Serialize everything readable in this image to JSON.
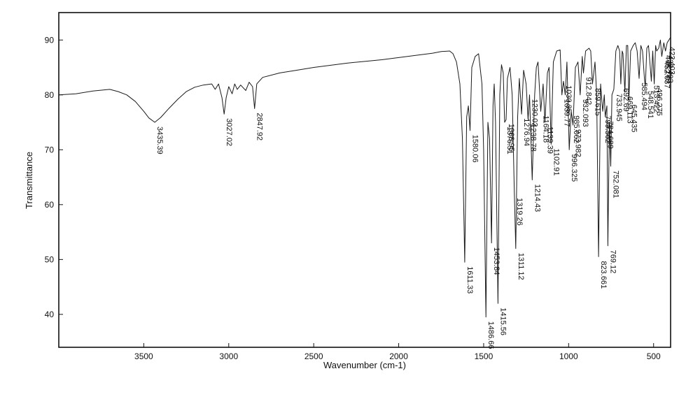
{
  "chart_data": {
    "type": "line",
    "xlabel": "Wavenumber (cm-1)",
    "ylabel": "Transmittance",
    "xlim": [
      4000,
      400
    ],
    "ylim": [
      34,
      95
    ],
    "x_reversed": true,
    "grid": false,
    "x_ticks": [
      3500,
      3000,
      2500,
      2000,
      1500,
      1000,
      500
    ],
    "y_ticks": [
      40,
      50,
      60,
      70,
      80,
      90
    ],
    "series": [
      {
        "color": "#1a1a1a",
        "points": [
          [
            4000,
            80.0
          ],
          [
            3900,
            80.2
          ],
          [
            3800,
            80.7
          ],
          [
            3700,
            81.0
          ],
          [
            3650,
            80.6
          ],
          [
            3600,
            80.0
          ],
          [
            3550,
            78.8
          ],
          [
            3500,
            77.0
          ],
          [
            3470,
            75.8
          ],
          [
            3435.39,
            75.0
          ],
          [
            3400,
            75.9
          ],
          [
            3350,
            77.6
          ],
          [
            3300,
            79.2
          ],
          [
            3250,
            80.6
          ],
          [
            3200,
            81.4
          ],
          [
            3150,
            81.8
          ],
          [
            3100,
            82.0
          ],
          [
            3080,
            81.0
          ],
          [
            3060,
            82.0
          ],
          [
            3040,
            79.5
          ],
          [
            3027.02,
            76.5
          ],
          [
            3015,
            79.5
          ],
          [
            3000,
            81.5
          ],
          [
            2980,
            80.2
          ],
          [
            2965,
            82.0
          ],
          [
            2950,
            81.0
          ],
          [
            2930,
            81.8
          ],
          [
            2900,
            80.8
          ],
          [
            2880,
            82.3
          ],
          [
            2860,
            81.5
          ],
          [
            2847.92,
            77.5
          ],
          [
            2835,
            82.0
          ],
          [
            2800,
            83.2
          ],
          [
            2700,
            84.0
          ],
          [
            2600,
            84.5
          ],
          [
            2500,
            85.0
          ],
          [
            2400,
            85.4
          ],
          [
            2300,
            85.8
          ],
          [
            2200,
            86.1
          ],
          [
            2100,
            86.4
          ],
          [
            2000,
            86.8
          ],
          [
            1900,
            87.2
          ],
          [
            1800,
            87.6
          ],
          [
            1750,
            87.9
          ],
          [
            1700,
            88.0
          ],
          [
            1680,
            87.5
          ],
          [
            1660,
            86.0
          ],
          [
            1640,
            82.0
          ],
          [
            1625,
            72.0
          ],
          [
            1611.33,
            49.5
          ],
          [
            1600,
            76.0
          ],
          [
            1590,
            78.0
          ],
          [
            1580.06,
            73.5
          ],
          [
            1570,
            85.0
          ],
          [
            1550,
            87.0
          ],
          [
            1530,
            87.5
          ],
          [
            1510,
            82.0
          ],
          [
            1500,
            70.0
          ],
          [
            1486.66,
            39.5
          ],
          [
            1475,
            75.0
          ],
          [
            1465,
            72.0
          ],
          [
            1453.84,
            53.0
          ],
          [
            1445,
            78.0
          ],
          [
            1438,
            82.0
          ],
          [
            1430,
            75.0
          ],
          [
            1415.56,
            42.0
          ],
          [
            1405,
            80.0
          ],
          [
            1395,
            85.5
          ],
          [
            1385,
            84.0
          ],
          [
            1376.51,
            75.0
          ],
          [
            1368,
            75.5
          ],
          [
            1360,
            83.0
          ],
          [
            1345,
            85.0
          ],
          [
            1332,
            80.0
          ],
          [
            1319.26,
            62.0
          ],
          [
            1311.12,
            52.0
          ],
          [
            1300,
            76.0
          ],
          [
            1290,
            83.0
          ],
          [
            1276.94,
            76.5
          ],
          [
            1265,
            84.5
          ],
          [
            1250,
            82.0
          ],
          [
            1238.78,
            75.5
          ],
          [
            1230,
            80.0
          ],
          [
            1214.43,
            64.5
          ],
          [
            1200,
            80.0
          ],
          [
            1190,
            85.0
          ],
          [
            1180,
            86.0
          ],
          [
            1164.18,
            77.0
          ],
          [
            1150,
            82.0
          ],
          [
            1139.39,
            75.0
          ],
          [
            1125,
            84.0
          ],
          [
            1115,
            85.0
          ],
          [
            1102.91,
            71.0
          ],
          [
            1090,
            86.0
          ],
          [
            1070,
            88.0
          ],
          [
            1050,
            88.2
          ],
          [
            1039.77,
            80.0
          ],
          [
            1030,
            82.5
          ],
          [
            1020,
            80.0
          ],
          [
            1010,
            86.0
          ],
          [
            996.325,
            70.0
          ],
          [
            985,
            77.0
          ],
          [
            973.982,
            74.5
          ],
          [
            960,
            85.0
          ],
          [
            945,
            86.0
          ],
          [
            932.093,
            80.0
          ],
          [
            920,
            87.0
          ],
          [
            912.842,
            84.0
          ],
          [
            900,
            88.0
          ],
          [
            880,
            88.5
          ],
          [
            870,
            88.0
          ],
          [
            859.615,
            82.0
          ],
          [
            845,
            86.0
          ],
          [
            835,
            80.0
          ],
          [
            823.661,
            50.5
          ],
          [
            812,
            82.0
          ],
          [
            799.562,
            77.0
          ],
          [
            790,
            80.0
          ],
          [
            784.689,
            76.0
          ],
          [
            775,
            78.0
          ],
          [
            769.12,
            52.5
          ],
          [
            760,
            75.0
          ],
          [
            752.081,
            67.0
          ],
          [
            745,
            80.0
          ],
          [
            733.945,
            81.0
          ],
          [
            722,
            88.0
          ],
          [
            710,
            89.0
          ],
          [
            700,
            88.0
          ],
          [
            692.69,
            82.0
          ],
          [
            685,
            88.0
          ],
          [
            680,
            87.5
          ],
          [
            669.113,
            80.5
          ],
          [
            660,
            89.0
          ],
          [
            652,
            89.0
          ],
          [
            645.435,
            79.0
          ],
          [
            635,
            88.0
          ],
          [
            620,
            89.0
          ],
          [
            608,
            89.5
          ],
          [
            597,
            88.0
          ],
          [
            585.494,
            83.0
          ],
          [
            575,
            89.0
          ],
          [
            565,
            88.0
          ],
          [
            554,
            83.0
          ],
          [
            548.541,
            81.5
          ],
          [
            540,
            88.5
          ],
          [
            530,
            89.0
          ],
          [
            522,
            86.0
          ],
          [
            513.422,
            82.5
          ],
          [
            505,
            88.0
          ],
          [
            496.275,
            82.0
          ],
          [
            488,
            89.0
          ],
          [
            482,
            88.0
          ],
          [
            470,
            88.5
          ],
          [
            460,
            90.0
          ],
          [
            452,
            87.0
          ],
          [
            440,
            89.5
          ],
          [
            430,
            88.0
          ],
          [
            420,
            89.5
          ],
          [
            410,
            90.0
          ],
          [
            400,
            90.5
          ]
        ]
      }
    ],
    "peak_labels": [
      {
        "x": 3435.39,
        "y": 75.0,
        "text": "3435.39"
      },
      {
        "x": 3027.02,
        "y": 76.5,
        "text": "3027.02"
      },
      {
        "x": 2847.92,
        "y": 77.5,
        "text": "2847.92"
      },
      {
        "x": 1611.33,
        "y": 49.5,
        "text": "1611.33"
      },
      {
        "x": 1580.06,
        "y": 73.5,
        "text": "1580.06"
      },
      {
        "x": 1486.66,
        "y": 39.5,
        "text": "1486.66"
      },
      {
        "x": 1453.84,
        "y": 53.0,
        "text": "1453.84"
      },
      {
        "x": 1415.56,
        "y": 42.0,
        "text": "1415.56"
      },
      {
        "x": 1376.51,
        "y": 75.0,
        "text": "1376.51"
      },
      {
        "x": 1368.95,
        "y": 75.5,
        "text": "1368.95"
      },
      {
        "x": 1319.26,
        "y": 62.0,
        "text": "1319.26"
      },
      {
        "x": 1311.12,
        "y": 52.0,
        "text": "1311.12"
      },
      {
        "x": 1276.94,
        "y": 76.5,
        "text": "1276.94"
      },
      {
        "x": 1238.78,
        "y": 75.5,
        "text": "1238.78"
      },
      {
        "x": 1230.02,
        "y": 80.0,
        "text": "1230.02"
      },
      {
        "x": 1214.43,
        "y": 64.5,
        "text": "1214.43"
      },
      {
        "x": 1164.18,
        "y": 77.0,
        "text": "1164.18"
      },
      {
        "x": 1139.39,
        "y": 75.0,
        "text": "1139.39"
      },
      {
        "x": 1102.91,
        "y": 71.0,
        "text": "1102.91"
      },
      {
        "x": 1039.77,
        "y": 80.0,
        "text": "1039.77"
      },
      {
        "x": 1030.35,
        "y": 82.5,
        "text": "1030.35"
      },
      {
        "x": 996.325,
        "y": 70.0,
        "text": "996.325"
      },
      {
        "x": 973.982,
        "y": 74.5,
        "text": "973.982"
      },
      {
        "x": 985.062,
        "y": 77.0,
        "text": "985.062"
      },
      {
        "x": 932.093,
        "y": 80.0,
        "text": "932.093"
      },
      {
        "x": 912.842,
        "y": 84.0,
        "text": "912.842"
      },
      {
        "x": 859.615,
        "y": 82.0,
        "text": "859.615"
      },
      {
        "x": 823.661,
        "y": 50.5,
        "text": "823.661"
      },
      {
        "x": 799.562,
        "y": 77.0,
        "text": "799.562"
      },
      {
        "x": 784.689,
        "y": 76.0,
        "text": "784.689"
      },
      {
        "x": 769.12,
        "y": 52.5,
        "text": "769.12"
      },
      {
        "x": 752.081,
        "y": 67.0,
        "text": "752.081"
      },
      {
        "x": 733.945,
        "y": 81.0,
        "text": "733.945"
      },
      {
        "x": 692.69,
        "y": 82.0,
        "text": "692.69"
      },
      {
        "x": 669.113,
        "y": 80.5,
        "text": "669.113"
      },
      {
        "x": 645.435,
        "y": 79.0,
        "text": "645.435"
      },
      {
        "x": 585.494,
        "y": 83.0,
        "text": "585.494"
      },
      {
        "x": 548.541,
        "y": 81.5,
        "text": "548.541"
      },
      {
        "x": 513.422,
        "y": 82.5,
        "text": "513.422"
      },
      {
        "x": 496.275,
        "y": 82.0,
        "text": "496.275"
      },
      {
        "x": 452.037,
        "y": 87.0,
        "text": "452.037"
      },
      {
        "x": 446.149,
        "y": 88.0,
        "text": "446.149"
      },
      {
        "x": 432.403,
        "y": 88.0,
        "text": "432.403"
      },
      {
        "x": 422.403,
        "y": 89.5,
        "text": "422.403"
      }
    ]
  }
}
